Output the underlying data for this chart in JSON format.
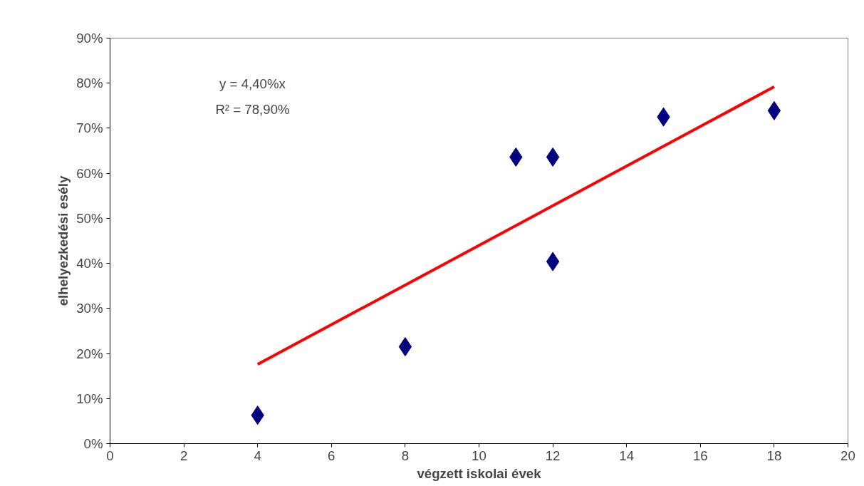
{
  "chart_data": {
    "type": "scatter",
    "xlabel": "végzett iskolai évek",
    "ylabel": "elhelyezkedési esély",
    "xlim": [
      0,
      20
    ],
    "xticks": [
      0,
      2,
      4,
      6,
      8,
      10,
      12,
      14,
      16,
      18,
      20
    ],
    "ylim": [
      0,
      90
    ],
    "yticks": [
      {
        "value": 0,
        "label": "0%"
      },
      {
        "value": 10,
        "label": "10%"
      },
      {
        "value": 20,
        "label": "20%"
      },
      {
        "value": 30,
        "label": "30%"
      },
      {
        "value": 40,
        "label": "40%"
      },
      {
        "value": 50,
        "label": "50%"
      },
      {
        "value": 60,
        "label": "60%"
      },
      {
        "value": 70,
        "label": "70%"
      },
      {
        "value": 80,
        "label": "80%"
      },
      {
        "value": 90,
        "label": "90%"
      }
    ],
    "grid": false,
    "series": [
      {
        "type": "scatter",
        "marker": "diamond",
        "color": "#000080",
        "x": [
          4,
          8,
          11,
          12,
          12,
          15,
          18
        ],
        "values": [
          6.3,
          21.5,
          63.6,
          63.6,
          40.4,
          72.5,
          73.9
        ]
      },
      {
        "type": "line",
        "line_style": "solid",
        "color": "#ff0000",
        "x": [
          4,
          18
        ],
        "values": [
          17.6,
          79.2
        ]
      }
    ],
    "annotations": [
      "y = 4,40%x",
      "R² = 78,90%"
    ]
  }
}
